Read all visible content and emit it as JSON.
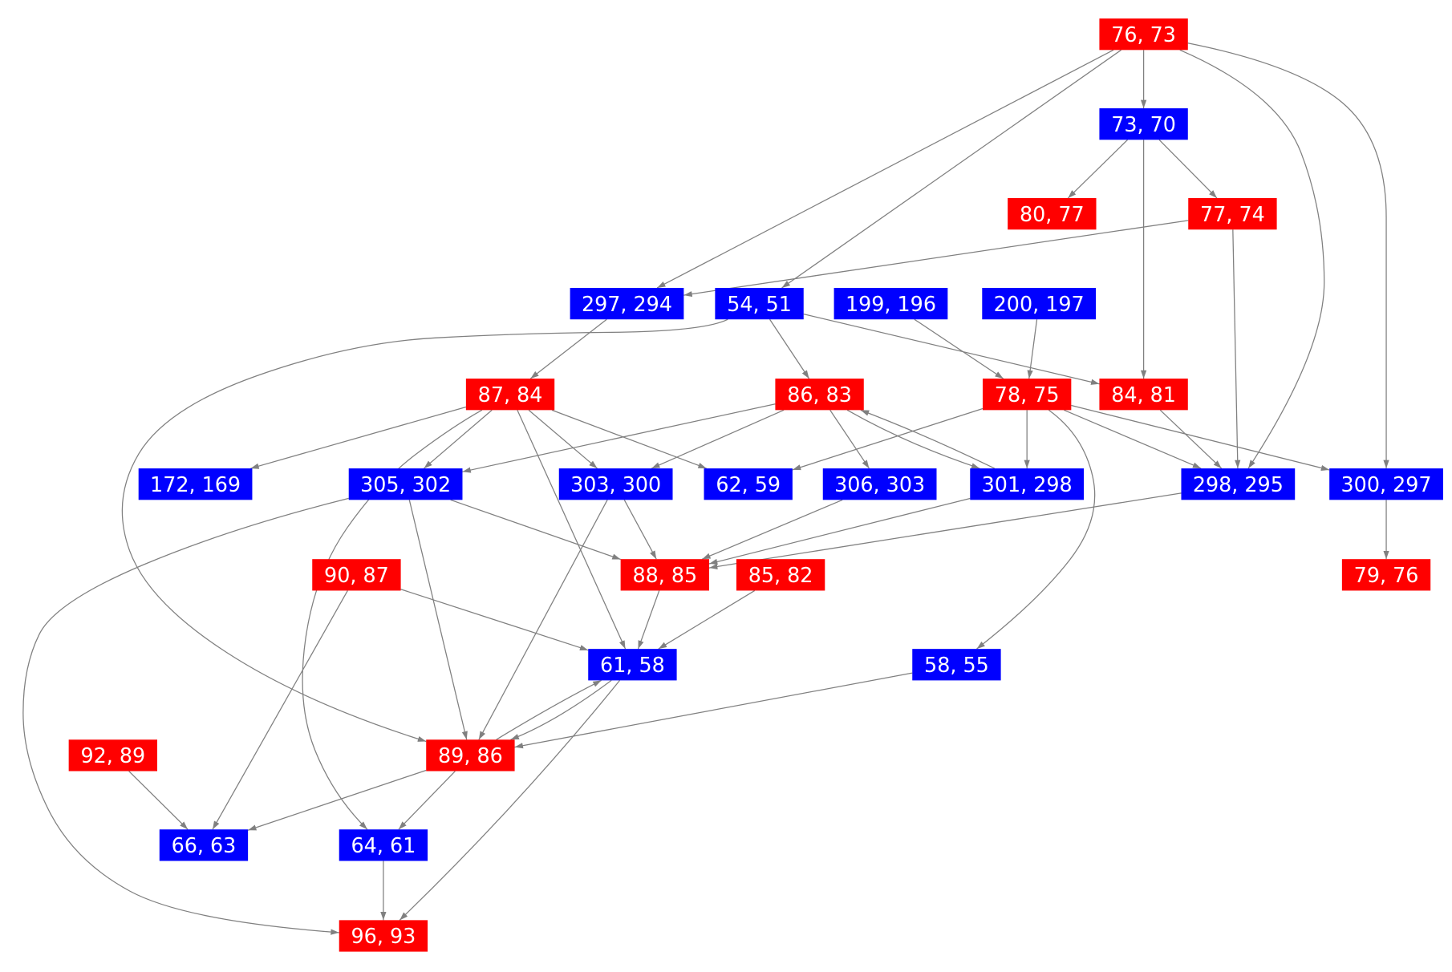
{
  "colors": {
    "red": "#ff0000",
    "blue": "#0000ff",
    "edge": "#808080",
    "text": "#ffffff"
  },
  "nodes": [
    {
      "id": "76,73",
      "label": "76, 73",
      "color": "red"
    },
    {
      "id": "73,70",
      "label": "73, 70",
      "color": "blue"
    },
    {
      "id": "80,77",
      "label": "80, 77",
      "color": "red"
    },
    {
      "id": "77,74",
      "label": "77, 74",
      "color": "red"
    },
    {
      "id": "297,294",
      "label": "297, 294",
      "color": "blue"
    },
    {
      "id": "54,51",
      "label": "54, 51",
      "color": "blue"
    },
    {
      "id": "199,196",
      "label": "199, 196",
      "color": "blue"
    },
    {
      "id": "200,197",
      "label": "200, 197",
      "color": "blue"
    },
    {
      "id": "87,84",
      "label": "87, 84",
      "color": "red"
    },
    {
      "id": "86,83",
      "label": "86, 83",
      "color": "red"
    },
    {
      "id": "78,75",
      "label": "78, 75",
      "color": "red"
    },
    {
      "id": "84,81",
      "label": "84, 81",
      "color": "red"
    },
    {
      "id": "172,169",
      "label": "172, 169",
      "color": "blue"
    },
    {
      "id": "305,302",
      "label": "305, 302",
      "color": "blue"
    },
    {
      "id": "303,300",
      "label": "303, 300",
      "color": "blue"
    },
    {
      "id": "62,59",
      "label": "62, 59",
      "color": "blue"
    },
    {
      "id": "306,303",
      "label": "306, 303",
      "color": "blue"
    },
    {
      "id": "301,298",
      "label": "301, 298",
      "color": "blue"
    },
    {
      "id": "298,295",
      "label": "298, 295",
      "color": "blue"
    },
    {
      "id": "300,297",
      "label": "300, 297",
      "color": "blue"
    },
    {
      "id": "90,87",
      "label": "90, 87",
      "color": "red"
    },
    {
      "id": "88,85",
      "label": "88, 85",
      "color": "red"
    },
    {
      "id": "85,82",
      "label": "85, 82",
      "color": "red"
    },
    {
      "id": "79,76",
      "label": "79, 76",
      "color": "red"
    },
    {
      "id": "61,58",
      "label": "61, 58",
      "color": "blue"
    },
    {
      "id": "58,55",
      "label": "58, 55",
      "color": "blue"
    },
    {
      "id": "92,89",
      "label": "92, 89",
      "color": "red"
    },
    {
      "id": "89,86",
      "label": "89, 86",
      "color": "red"
    },
    {
      "id": "66,63",
      "label": "66, 63",
      "color": "blue"
    },
    {
      "id": "64,61",
      "label": "64, 61",
      "color": "blue"
    },
    {
      "id": "96,93",
      "label": "96, 93",
      "color": "red"
    }
  ],
  "edges": [
    [
      "76,73",
      "297,294"
    ],
    [
      "76,73",
      "54,51"
    ],
    [
      "76,73",
      "73,70"
    ],
    [
      "76,73",
      "298,295"
    ],
    [
      "76,73",
      "300,297"
    ],
    [
      "73,70",
      "80,77"
    ],
    [
      "73,70",
      "77,74"
    ],
    [
      "73,70",
      "84,81"
    ],
    [
      "77,74",
      "297,294"
    ],
    [
      "77,74",
      "298,295"
    ],
    [
      "297,294",
      "87,84"
    ],
    [
      "54,51",
      "86,83"
    ],
    [
      "54,51",
      "84,81"
    ],
    [
      "54,51",
      "89,86"
    ],
    [
      "199,196",
      "78,75"
    ],
    [
      "200,197",
      "78,75"
    ],
    [
      "87,84",
      "172,169"
    ],
    [
      "87,84",
      "305,302"
    ],
    [
      "87,84",
      "303,300"
    ],
    [
      "87,84",
      "62,59"
    ],
    [
      "87,84",
      "61,58"
    ],
    [
      "87,84",
      "64,61"
    ],
    [
      "86,83",
      "305,302"
    ],
    [
      "86,83",
      "303,300"
    ],
    [
      "86,83",
      "306,303"
    ],
    [
      "86,83",
      "301,298"
    ],
    [
      "301,298",
      "86,83"
    ],
    [
      "78,75",
      "62,59"
    ],
    [
      "78,75",
      "301,298"
    ],
    [
      "78,75",
      "298,295"
    ],
    [
      "78,75",
      "300,297"
    ],
    [
      "78,75",
      "58,55"
    ],
    [
      "84,81",
      "298,295"
    ],
    [
      "305,302",
      "88,85"
    ],
    [
      "305,302",
      "89,86"
    ],
    [
      "305,302",
      "96,93"
    ],
    [
      "303,300",
      "88,85"
    ],
    [
      "303,300",
      "89,86"
    ],
    [
      "306,303",
      "88,85"
    ],
    [
      "301,298",
      "88,85"
    ],
    [
      "298,295",
      "88,85"
    ],
    [
      "300,297",
      "79,76"
    ],
    [
      "90,87",
      "61,58"
    ],
    [
      "90,87",
      "66,63"
    ],
    [
      "88,85",
      "61,58"
    ],
    [
      "85,82",
      "61,58"
    ],
    [
      "61,58",
      "89,86"
    ],
    [
      "89,86",
      "61,58"
    ],
    [
      "61,58",
      "96,93"
    ],
    [
      "58,55",
      "89,86"
    ],
    [
      "92,89",
      "66,63"
    ],
    [
      "89,86",
      "66,63"
    ],
    [
      "89,86",
      "64,61"
    ],
    [
      "64,61",
      "96,93"
    ]
  ]
}
